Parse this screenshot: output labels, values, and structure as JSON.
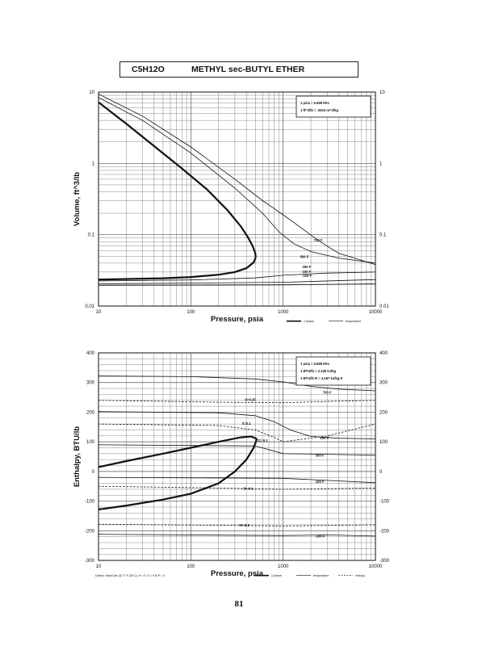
{
  "header": {
    "formula": "C5H12O",
    "name": "METHYL sec-BUTYL ETHER"
  },
  "page_number": "81",
  "chart_data": [
    {
      "type": "line",
      "log_x": true,
      "log_y": true,
      "xlabel": "Pressure, psia",
      "ylabel": "Volume, ft^3/lb",
      "xlim": [
        10,
        10000
      ],
      "ylim": [
        0.01,
        10
      ],
      "x_ticks": [
        "10",
        "100",
        "1000",
        "10000"
      ],
      "y_ticks_left": [
        "10",
        "1",
        "0.1",
        "0.01"
      ],
      "y_ticks_right": [
        "10",
        "1",
        "0.1",
        "0.01"
      ],
      "grid": true,
      "conversion_box": [
        "1 psia = 6.895 kPa",
        "1 ft^3/lb = .0624 m^3/kg"
      ],
      "legend": [
        "2 phase",
        "temperature"
      ],
      "two_phase": {
        "vapor": [
          [
            10,
            7.2
          ],
          [
            20,
            3.6
          ],
          [
            40,
            1.75
          ],
          [
            80,
            0.85
          ],
          [
            150,
            0.43
          ],
          [
            250,
            0.22
          ],
          [
            350,
            0.13
          ],
          [
            420,
            0.09
          ],
          [
            470,
            0.068
          ],
          [
            500,
            0.055
          ],
          [
            505,
            0.048
          ]
        ],
        "liquid": [
          [
            505,
            0.048
          ],
          [
            480,
            0.041
          ],
          [
            400,
            0.034
          ],
          [
            300,
            0.03
          ],
          [
            200,
            0.0275
          ],
          [
            100,
            0.0255
          ],
          [
            50,
            0.0245
          ],
          [
            10,
            0.0235
          ]
        ]
      },
      "isotherms": [
        {
          "label": "700 F",
          "points": [
            [
              10,
              9.4
            ],
            [
              30,
              4.6
            ],
            [
              100,
              1.7
            ],
            [
              300,
              0.6
            ],
            [
              600,
              0.3
            ],
            [
              1000,
              0.19
            ],
            [
              1500,
              0.13
            ],
            [
              2500,
              0.08
            ],
            [
              4000,
              0.055
            ],
            [
              10000,
              0.038
            ]
          ]
        },
        {
          "label": "500 F",
          "points": [
            [
              10,
              8.4
            ],
            [
              30,
              4.0
            ],
            [
              100,
              1.4
            ],
            [
              300,
              0.45
            ],
            [
              600,
              0.2
            ],
            [
              900,
              0.11
            ],
            [
              1300,
              0.075
            ],
            [
              2000,
              0.058
            ],
            [
              4000,
              0.047
            ],
            [
              10000,
              0.04
            ]
          ]
        },
        {
          "label": "300 F",
          "points": [
            [
              10,
              0.0225
            ],
            [
              100,
              0.0232
            ],
            [
              500,
              0.0248
            ],
            [
              1000,
              0.027
            ],
            [
              3000,
              0.029
            ],
            [
              10000,
              0.03
            ]
          ]
        },
        {
          "label": "100 F",
          "points": [
            [
              10,
              0.0205
            ],
            [
              1000,
              0.0215
            ],
            [
              10000,
              0.0235
            ]
          ]
        },
        {
          "label": "-100 F",
          "points": [
            [
              10,
              0.0195
            ],
            [
              1000,
              0.0198
            ],
            [
              10000,
              0.0205
            ]
          ]
        }
      ]
    },
    {
      "type": "line",
      "log_x": true,
      "xlabel": "Pressure, psia",
      "ylabel": "Enthalpy, BTU/lb",
      "xlim": [
        10,
        10000
      ],
      "ylim": [
        -300,
        400
      ],
      "x_ticks": [
        "10",
        "100",
        "1000",
        "10000"
      ],
      "y_ticks_left": [
        "400",
        "300",
        "200",
        "100",
        "0",
        "-100",
        "-200",
        "-300"
      ],
      "y_ticks_right": [
        "400",
        "300",
        "200",
        "100",
        "0",
        "-100",
        "-200",
        "-300"
      ],
      "grid": true,
      "conversion_box": [
        "1 psia = 6.895 kPa",
        "1 BTU/lb = 2.326 kJ/kg",
        "1 BTU/lb R = 4.187 kJ/kg K"
      ],
      "legend": [
        "2 phase",
        "temperature",
        "entropy"
      ],
      "footnote": "Datum: Ideal Gas @ 77 F (25 C), H = 0, S = 0 lb P = 0",
      "two_phase": {
        "vapor": [
          [
            10,
            15
          ],
          [
            20,
            35
          ],
          [
            50,
            60
          ],
          [
            100,
            80
          ],
          [
            200,
            100
          ],
          [
            350,
            115
          ],
          [
            450,
            118
          ],
          [
            520,
            110
          ]
        ],
        "liquid": [
          [
            520,
            110
          ],
          [
            480,
            80
          ],
          [
            400,
            40
          ],
          [
            300,
            0
          ],
          [
            200,
            -40
          ],
          [
            100,
            -75
          ],
          [
            50,
            -95
          ],
          [
            20,
            -115
          ],
          [
            10,
            -128
          ]
        ]
      },
      "isotherms": [
        {
          "label": "700 F",
          "points": [
            [
              10,
              322
            ],
            [
              100,
              320
            ],
            [
              500,
              312
            ],
            [
              1000,
              302
            ],
            [
              2000,
              287
            ],
            [
              4000,
              278
            ],
            [
              10000,
              272
            ]
          ]
        },
        {
          "label": "500 F",
          "points": [
            [
              10,
              202
            ],
            [
              200,
              198
            ],
            [
              500,
              188
            ],
            [
              800,
              168
            ],
            [
              1200,
              140
            ],
            [
              2000,
              118
            ],
            [
              4000,
              112
            ],
            [
              10000,
              110
            ]
          ]
        },
        {
          "label": "300 F",
          "points": [
            [
              10,
              90
            ],
            [
              500,
              86
            ],
            [
              1000,
              60
            ],
            [
              3000,
              58
            ],
            [
              10000,
              55
            ]
          ]
        },
        {
          "label": "100 F",
          "points": [
            [
              10,
              -20
            ],
            [
              1000,
              -23
            ],
            [
              3000,
              -30
            ],
            [
              10000,
              -38
            ]
          ]
        },
        {
          "label": "-100 F",
          "points": [
            [
              10,
              -212
            ],
            [
              1000,
              -216
            ],
            [
              3000,
              -214
            ],
            [
              10000,
              -218
            ]
          ]
        }
      ],
      "entropy_lines": [
        {
          "label": "S=0.25",
          "points": [
            [
              10,
              240
            ],
            [
              100,
              235
            ],
            [
              300,
              233
            ],
            [
              1000,
              232
            ],
            [
              3000,
              236
            ],
            [
              10000,
              240
            ]
          ]
        },
        {
          "label": "S=0.1",
          "points": [
            [
              10,
              160
            ],
            [
              200,
              155
            ],
            [
              500,
              140
            ],
            [
              800,
              115
            ],
            [
              1000,
              100
            ],
            [
              3000,
              120
            ],
            [
              10000,
              160
            ]
          ]
        },
        {
          "label": "S=-0.1",
          "points": [
            [
              10,
              -50
            ],
            [
              200,
              -56
            ],
            [
              1000,
              -60
            ],
            [
              10000,
              -56
            ]
          ]
        },
        {
          "label": "S=-0.3",
          "points": [
            [
              10,
              -178
            ],
            [
              300,
              -182
            ],
            [
              1000,
              -184
            ],
            [
              10000,
              -180
            ]
          ]
        }
      ],
      "inline_labels": [
        "S=0.25",
        "S=0.1",
        "S=-0.1",
        "S=-0.1",
        "S=-0.3"
      ]
    }
  ]
}
